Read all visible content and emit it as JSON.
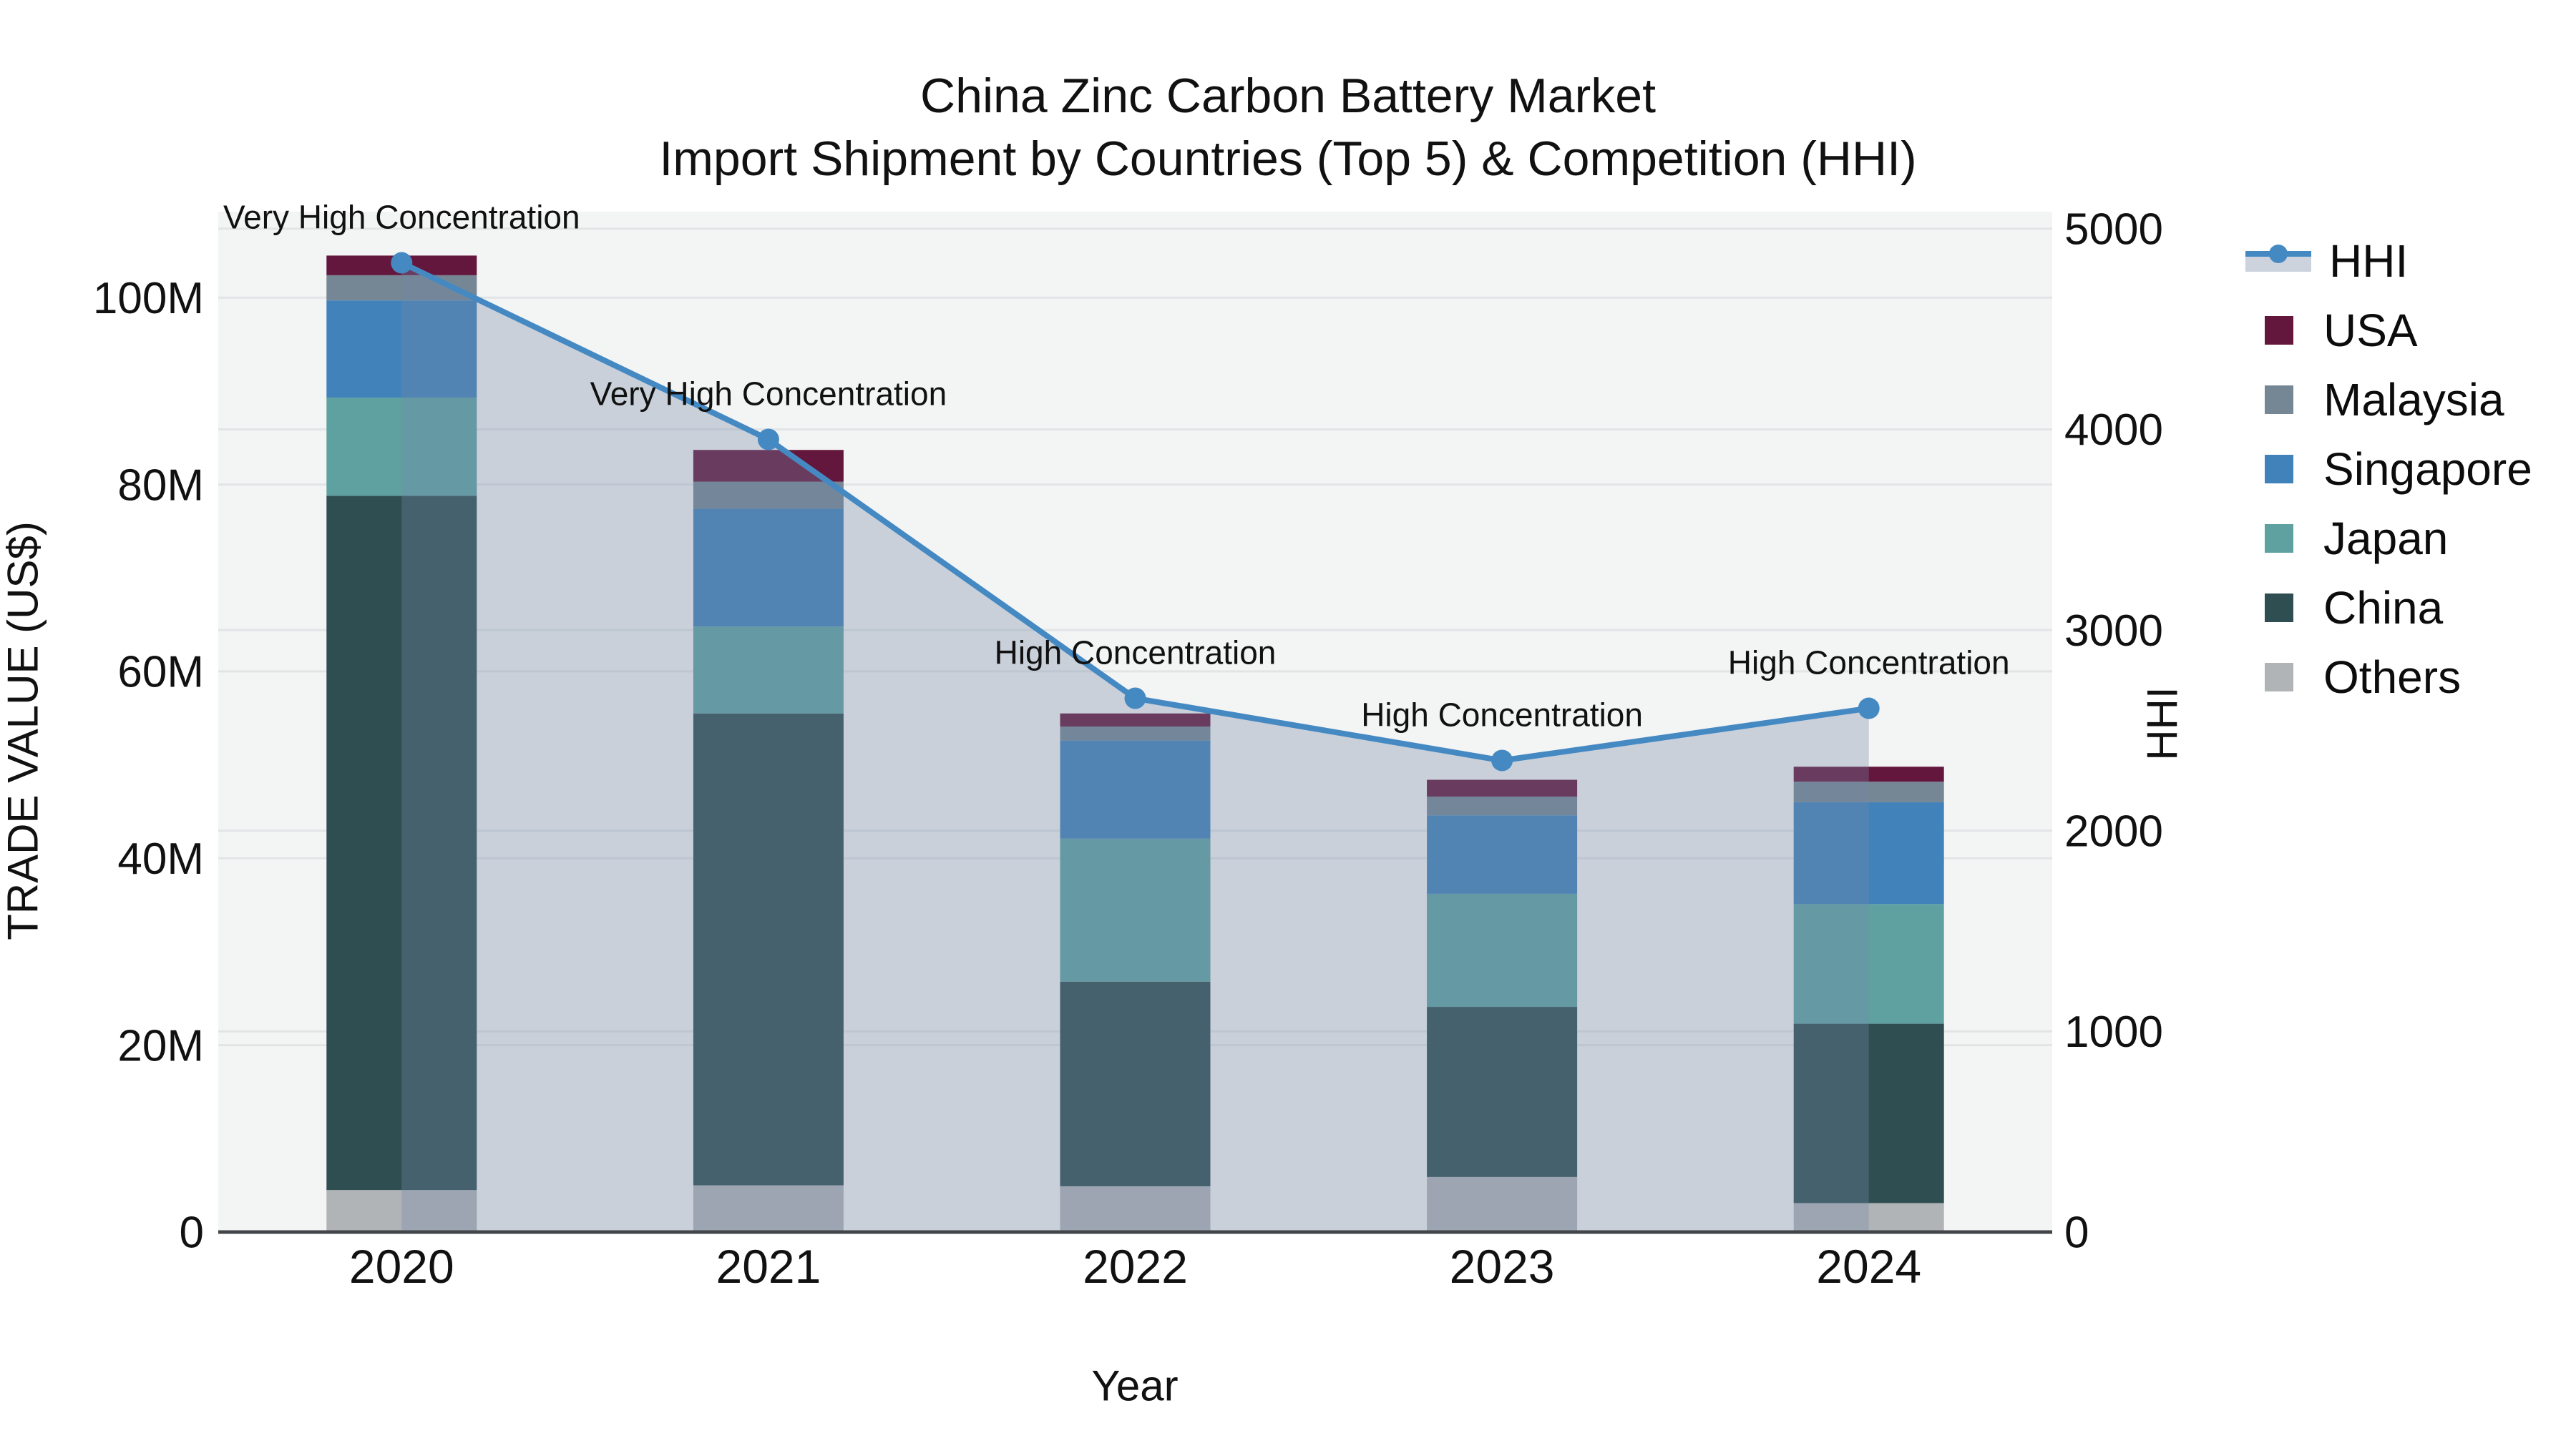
{
  "title": {
    "line1": "China Zinc Carbon Battery Market",
    "line2": "Import Shipment by Countries (Top 5) & Competition (HHI)"
  },
  "chart_data": {
    "type": "bar+line",
    "categories": [
      "2020",
      "2021",
      "2022",
      "2023",
      "2024"
    ],
    "bar_unit": "million US$",
    "series": [
      {
        "name": "Others",
        "color": "#b1b4b6",
        "values": [
          4.5,
          5.0,
          4.9,
          5.9,
          3.1
        ]
      },
      {
        "name": "China",
        "color": "#2f4e52",
        "values": [
          74.3,
          50.5,
          21.9,
          18.2,
          19.2
        ]
      },
      {
        "name": "Japan",
        "color": "#5fa1a1",
        "values": [
          10.5,
          9.3,
          15.3,
          12.1,
          12.8
        ]
      },
      {
        "name": "Singapore",
        "color": "#4282ba",
        "values": [
          10.4,
          12.6,
          10.5,
          8.4,
          10.9
        ]
      },
      {
        "name": "Malaysia",
        "color": "#758694",
        "values": [
          2.7,
          2.9,
          1.5,
          2.0,
          2.2
        ]
      },
      {
        "name": "USA",
        "color": "#64173c",
        "values": [
          2.1,
          3.4,
          1.4,
          1.8,
          1.6
        ]
      }
    ],
    "hhi": {
      "name": "HHI",
      "color": "#4589c3",
      "fill_color": "rgba(114,136,166,0.33)",
      "values": [
        4830,
        3950,
        2660,
        2350,
        2610
      ],
      "annotations": [
        "Very High Concentration",
        "Very High Concentration",
        "High Concentration",
        "High Concentration",
        "High Concentration"
      ]
    },
    "xlabel": "Year",
    "ylabel": "TRADE VALUE (US$)",
    "y2label": "HHI",
    "yticks": [
      {
        "v": 0,
        "label": "0"
      },
      {
        "v": 20,
        "label": "20M"
      },
      {
        "v": 40,
        "label": "40M"
      },
      {
        "v": 60,
        "label": "60M"
      },
      {
        "v": 80,
        "label": "80M"
      },
      {
        "v": 100,
        "label": "100M"
      }
    ],
    "y2ticks": [
      {
        "v": 0,
        "label": "0"
      },
      {
        "v": 1000,
        "label": "1000"
      },
      {
        "v": 2000,
        "label": "2000"
      },
      {
        "v": 3000,
        "label": "3000"
      },
      {
        "v": 4000,
        "label": "4000"
      },
      {
        "v": 5000,
        "label": "5000"
      }
    ],
    "ylim_musd": [
      0,
      109.2
    ],
    "y2lim": [
      0,
      5085
    ],
    "grid": true,
    "legend_position": "right",
    "plot_bg": "#f3f4f4",
    "grid_color": "#e2e4e6",
    "axis_line_color": "#42464a",
    "text_color": "#111111"
  },
  "legend": {
    "items": [
      {
        "label": "HHI",
        "type": "line",
        "color": "#4589c3",
        "fill": "#ccd3dd"
      },
      {
        "label": "USA",
        "type": "square",
        "color": "#64173c"
      },
      {
        "label": "Malaysia",
        "type": "square",
        "color": "#758694"
      },
      {
        "label": "Singapore",
        "type": "square",
        "color": "#4282ba"
      },
      {
        "label": "Japan",
        "type": "square",
        "color": "#5fa1a1"
      },
      {
        "label": "China",
        "type": "square",
        "color": "#2f4e52"
      },
      {
        "label": "Others",
        "type": "square",
        "color": "#b1b4b6"
      }
    ]
  }
}
